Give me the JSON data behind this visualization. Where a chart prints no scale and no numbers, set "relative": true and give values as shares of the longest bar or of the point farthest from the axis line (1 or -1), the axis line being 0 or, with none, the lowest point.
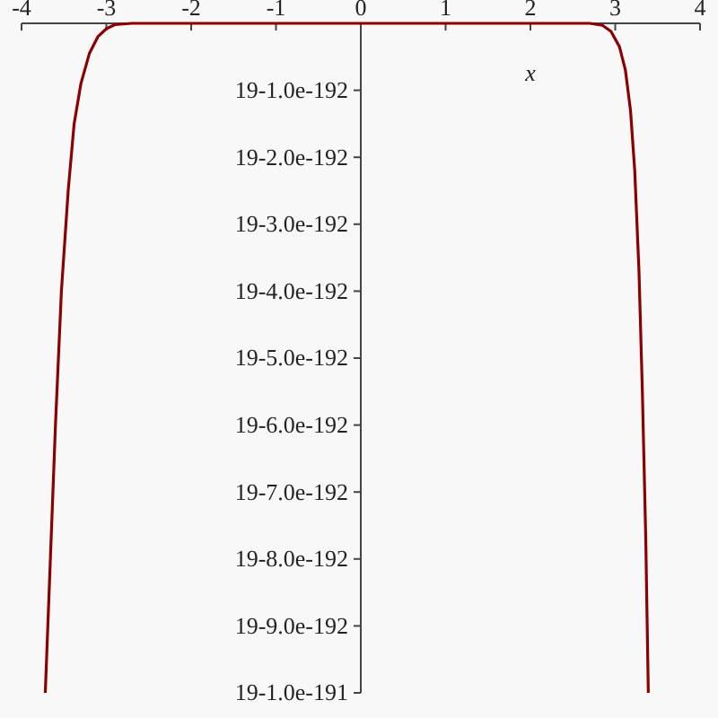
{
  "chart_data": {
    "type": "line",
    "xlabel": "x",
    "relative": true,
    "x": [
      -3.72,
      -3.66,
      -3.6,
      -3.53,
      -3.45,
      -3.38,
      -3.3,
      -3.2,
      -3.1,
      -3.0,
      -2.9,
      -2.7,
      0,
      2.7,
      2.85,
      2.95,
      3.05,
      3.12,
      3.18,
      3.23,
      3.28,
      3.32,
      3.36,
      3.39
    ],
    "series": [
      {
        "color": "#8b0000",
        "values": [
          -1,
          -0.8,
          -0.6,
          -0.4,
          -0.25,
          -0.15,
          -0.09,
          -0.045,
          -0.02,
          -0.008,
          -0.002,
          0,
          0,
          0,
          -0.003,
          -0.012,
          -0.035,
          -0.07,
          -0.13,
          -0.22,
          -0.37,
          -0.55,
          -0.77,
          -1
        ]
      }
    ],
    "xlim": [
      -4,
      4
    ],
    "xticks": [
      -4,
      -3,
      -2,
      -1,
      0,
      1,
      2,
      3,
      4
    ],
    "annotations": [
      "19-1.0e-192",
      "19-2.0e-192",
      "19-3.0e-192",
      "19-4.0e-192",
      "19-5.0e-192",
      "19-6.0e-192",
      "19-7.0e-192",
      "19-8.0e-192",
      "19-9.0e-192",
      "19-1.0e-191"
    ],
    "marker": "none",
    "line_style": "solid"
  }
}
